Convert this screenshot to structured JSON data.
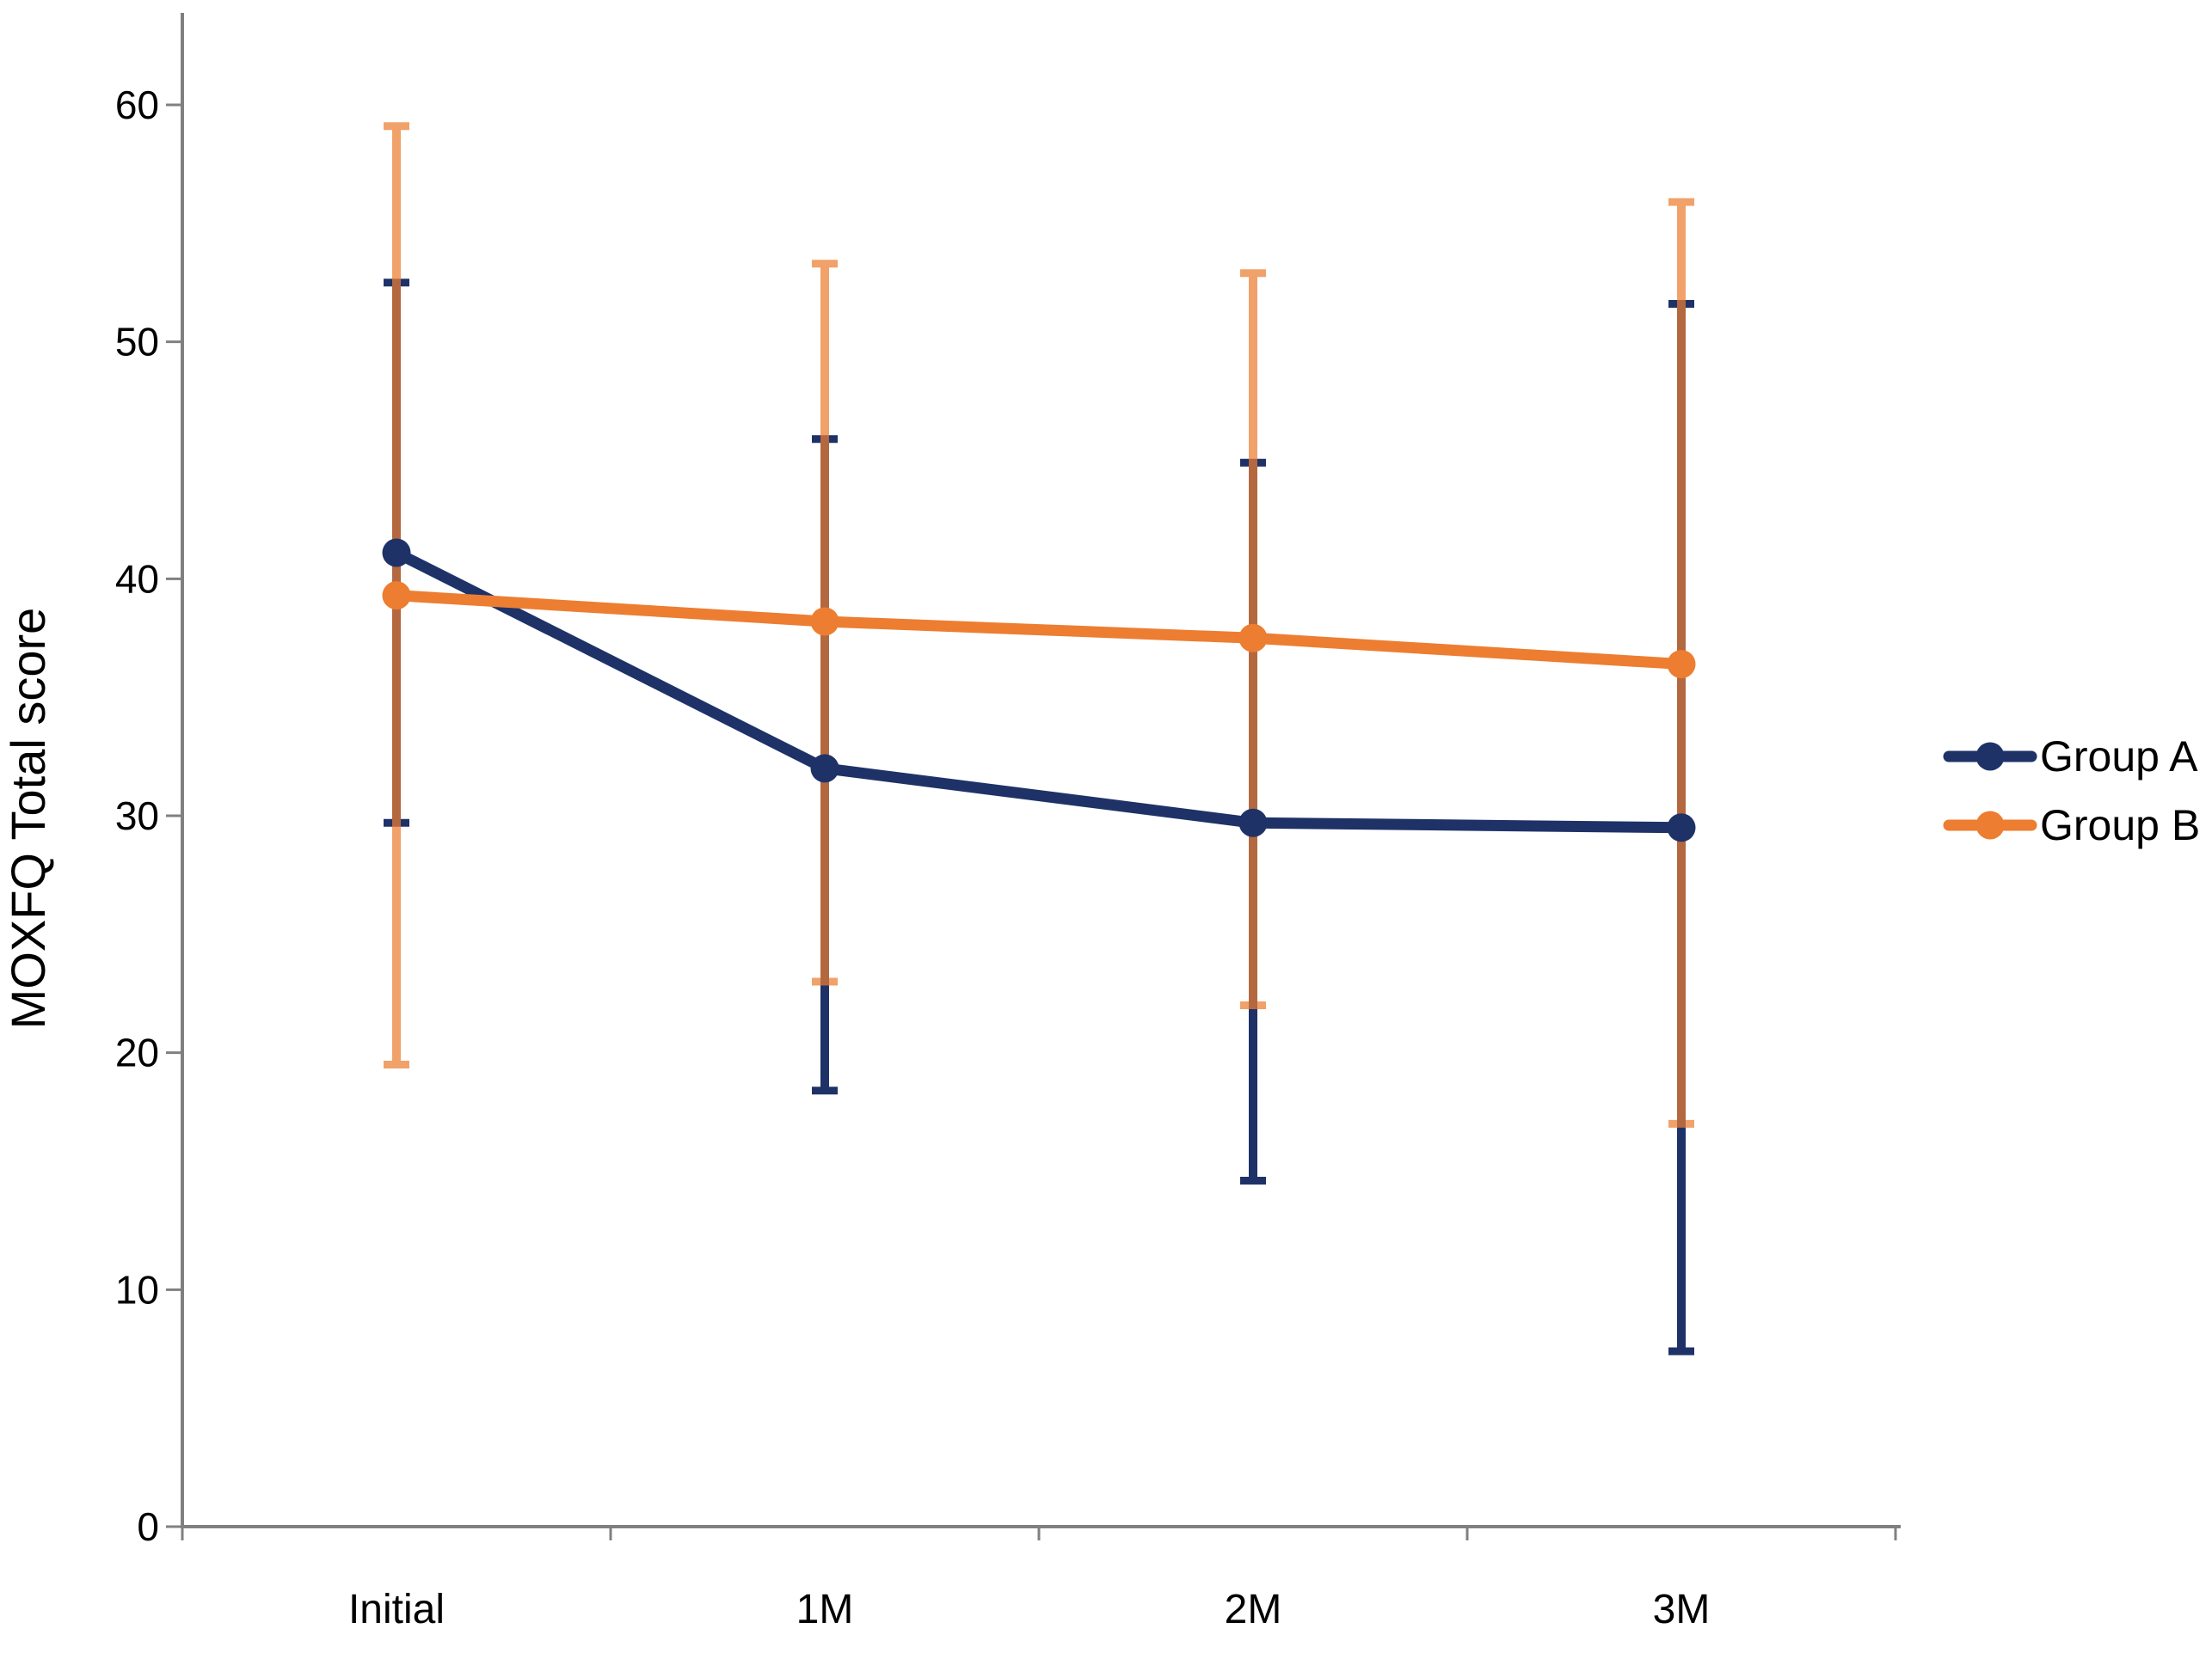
{
  "chart_data": {
    "type": "line",
    "title": "",
    "ylabel": "MOXFQ Total score",
    "xlabel": "",
    "categories": [
      "Initial",
      "1M",
      "2M",
      "3M"
    ],
    "series": [
      {
        "name": "Group A",
        "color": "#1E3268",
        "values": [
          41.1,
          32.0,
          29.7,
          29.5
        ],
        "error_upper": [
          52.5,
          45.9,
          44.9,
          51.6
        ],
        "error_lower": [
          29.7,
          18.4,
          14.6,
          7.4
        ]
      },
      {
        "name": "Group B",
        "color": "#ED7D31",
        "values": [
          39.3,
          38.2,
          37.5,
          36.4
        ],
        "error_upper": [
          59.1,
          53.3,
          52.9,
          55.9
        ],
        "error_lower": [
          19.5,
          23.0,
          22.0,
          17.0
        ]
      }
    ],
    "ylim": [
      0,
      60
    ],
    "yticks": [
      0,
      10,
      20,
      30,
      40,
      50,
      60
    ],
    "grid": false,
    "legend_position": "right",
    "marker": "circle",
    "axis_color": "#808080",
    "text_color": "#000000",
    "background_color": "#FFFFFF"
  }
}
